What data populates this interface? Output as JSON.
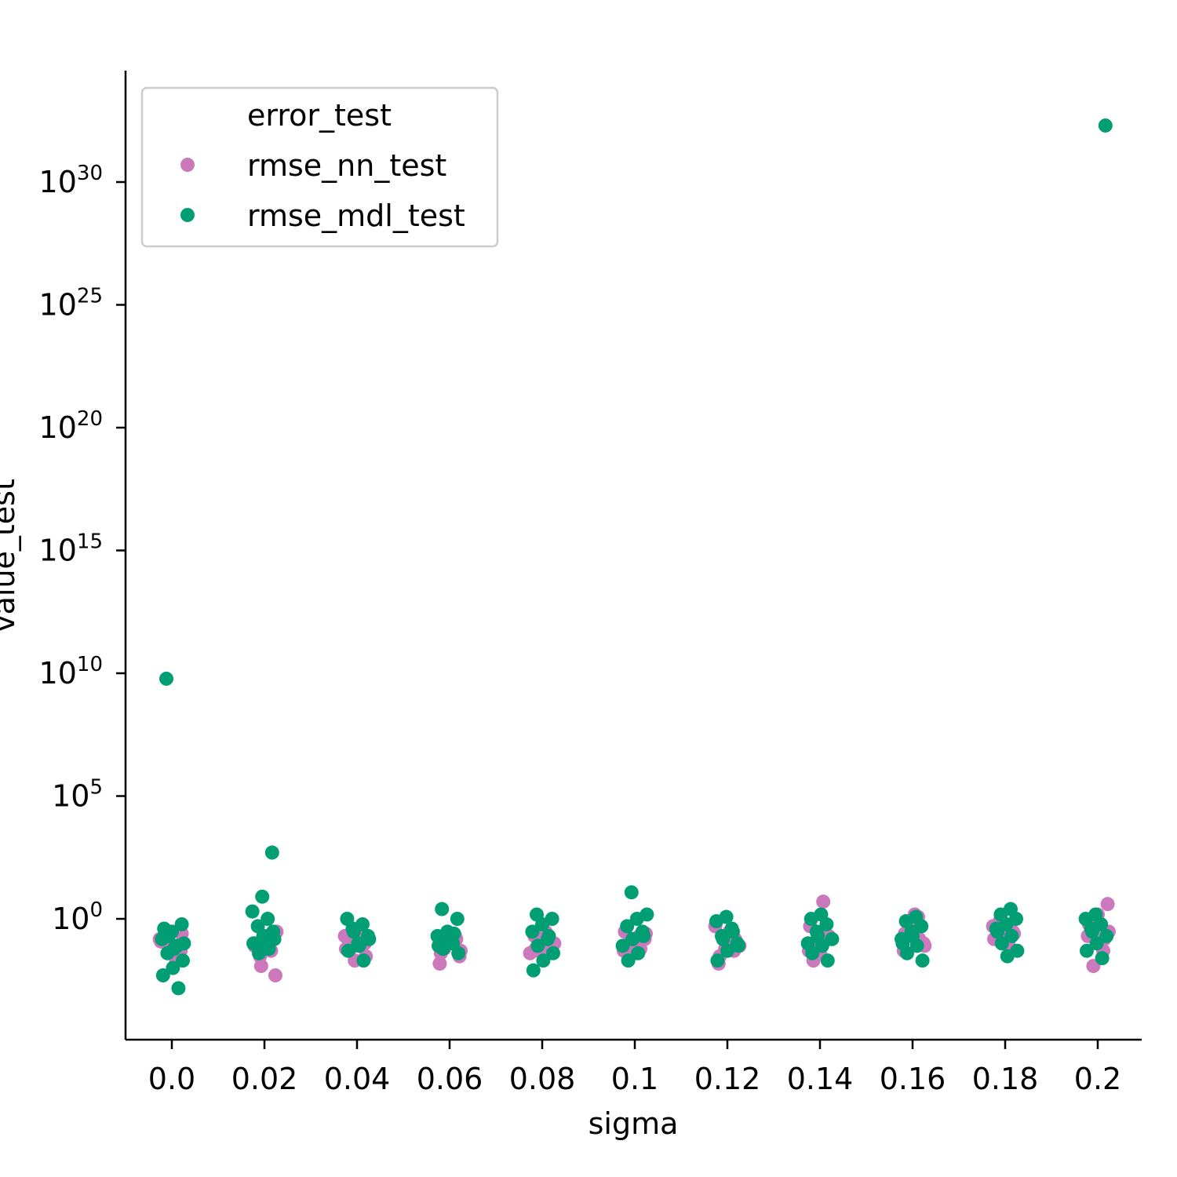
{
  "chart_data": {
    "type": "scatter",
    "subtype": "strip",
    "xlabel": "sigma",
    "ylabel": "value_test",
    "y_scale": "log",
    "categories": [
      "0.0",
      "0.02",
      "0.04",
      "0.06",
      "0.08",
      "0.1",
      "0.12",
      "0.14",
      "0.16",
      "0.18",
      "0.2"
    ],
    "y_ticks": [
      {
        "base": "10",
        "exp": "0",
        "value": 1
      },
      {
        "base": "10",
        "exp": "5",
        "value": 100000.0
      },
      {
        "base": "10",
        "exp": "10",
        "value": 10000000000.0
      },
      {
        "base": "10",
        "exp": "15",
        "value": 1000000000000000.0
      },
      {
        "base": "10",
        "exp": "20",
        "value": 1e+20
      },
      {
        "base": "10",
        "exp": "25",
        "value": 1e+25
      },
      {
        "base": "10",
        "exp": "30",
        "value": 1e+30
      }
    ],
    "ylim": [
      1e-05,
      1e+34
    ],
    "legend": {
      "title": "error_test",
      "position": "top-left"
    },
    "series": [
      {
        "name": "rmse_nn_test",
        "color": "#cc78bc",
        "points": [
          [
            0,
            0.15
          ],
          [
            0,
            0.08
          ],
          [
            0,
            0.2
          ],
          [
            0,
            0.05
          ],
          [
            0,
            0.3
          ],
          [
            0,
            0.12
          ],
          [
            0,
            0.02
          ],
          [
            0,
            0.1
          ],
          [
            0,
            0.25
          ],
          [
            0,
            0.06
          ],
          [
            1,
            0.08
          ],
          [
            1,
            0.15
          ],
          [
            1,
            0.03
          ],
          [
            1,
            0.005
          ],
          [
            1,
            0.2
          ],
          [
            1,
            0.1
          ],
          [
            1,
            0.05
          ],
          [
            1,
            0.012
          ],
          [
            1,
            0.3
          ],
          [
            1,
            0.06
          ],
          [
            2,
            0.05
          ],
          [
            2,
            0.1
          ],
          [
            2,
            0.02
          ],
          [
            2,
            0.2
          ],
          [
            2,
            0.15
          ],
          [
            2,
            0.08
          ],
          [
            2,
            0.03
          ],
          [
            2,
            0.12
          ],
          [
            2,
            0.06
          ],
          [
            2,
            0.25
          ],
          [
            3,
            0.06
          ],
          [
            3,
            0.03
          ],
          [
            3,
            0.1
          ],
          [
            3,
            0.015
          ],
          [
            3,
            0.2
          ],
          [
            3,
            0.08
          ],
          [
            3,
            0.05
          ],
          [
            3,
            0.12
          ],
          [
            3,
            0.04
          ],
          [
            3,
            0.15
          ],
          [
            4,
            0.05
          ],
          [
            4,
            0.1
          ],
          [
            4,
            0.03
          ],
          [
            4,
            0.2
          ],
          [
            4,
            0.08
          ],
          [
            4,
            0.15
          ],
          [
            4,
            0.04
          ],
          [
            4,
            0.3
          ],
          [
            4,
            0.06
          ],
          [
            4,
            0.12
          ],
          [
            5,
            0.1
          ],
          [
            5,
            0.05
          ],
          [
            5,
            0.2
          ],
          [
            5,
            0.08
          ],
          [
            5,
            0.15
          ],
          [
            5,
            0.04
          ],
          [
            5,
            0.3
          ],
          [
            5,
            0.06
          ],
          [
            5,
            0.12
          ],
          [
            5,
            0.25
          ],
          [
            6,
            0.1
          ],
          [
            6,
            0.015
          ],
          [
            6,
            0.05
          ],
          [
            6,
            0.2
          ],
          [
            6,
            0.08
          ],
          [
            6,
            0.3
          ],
          [
            6,
            0.03
          ],
          [
            6,
            0.15
          ],
          [
            6,
            0.06
          ],
          [
            6,
            0.5
          ],
          [
            7,
            5
          ],
          [
            7,
            0.02
          ],
          [
            7,
            0.2
          ],
          [
            7,
            0.1
          ],
          [
            7,
            0.05
          ],
          [
            7,
            0.3
          ],
          [
            7,
            0.08
          ],
          [
            7,
            0.15
          ],
          [
            7,
            0.04
          ],
          [
            7,
            0.5
          ],
          [
            8,
            1.2
          ],
          [
            8,
            0.2
          ],
          [
            8,
            0.1
          ],
          [
            8,
            0.3
          ],
          [
            8,
            0.05
          ],
          [
            8,
            0.15
          ],
          [
            8,
            0.4
          ],
          [
            8,
            0.08
          ],
          [
            8,
            1.5
          ],
          [
            8,
            0.25
          ],
          [
            9,
            0.3
          ],
          [
            9,
            0.2
          ],
          [
            9,
            0.5
          ],
          [
            9,
            0.1
          ],
          [
            9,
            0.4
          ],
          [
            9,
            0.25
          ],
          [
            9,
            0.6
          ],
          [
            9,
            0.15
          ],
          [
            9,
            0.35
          ],
          [
            9,
            0.8
          ],
          [
            10,
            4
          ],
          [
            10,
            1.5
          ],
          [
            10,
            0.2
          ],
          [
            10,
            0.05
          ],
          [
            10,
            0.012
          ],
          [
            10,
            0.3
          ],
          [
            10,
            0.1
          ],
          [
            10,
            0.6
          ],
          [
            10,
            0.15
          ],
          [
            10,
            0.4
          ]
        ]
      },
      {
        "name": "rmse_mdl_test",
        "color": "#029e73",
        "points": [
          [
            0,
            6000000000.0
          ],
          [
            0,
            0.6
          ],
          [
            0,
            0.3
          ],
          [
            0,
            0.15
          ],
          [
            0,
            0.08
          ],
          [
            0,
            0.04
          ],
          [
            0,
            0.02
          ],
          [
            0,
            0.01
          ],
          [
            0,
            0.005
          ],
          [
            0,
            0.0015
          ],
          [
            0,
            0.2
          ],
          [
            0,
            0.1
          ],
          [
            0,
            0.06
          ],
          [
            0,
            0.4
          ],
          [
            1,
            500
          ],
          [
            1,
            8
          ],
          [
            1,
            2
          ],
          [
            1,
            1
          ],
          [
            1,
            0.5
          ],
          [
            1,
            0.3
          ],
          [
            1,
            0.2
          ],
          [
            1,
            0.1
          ],
          [
            1,
            0.06
          ],
          [
            1,
            0.04
          ],
          [
            1,
            0.15
          ],
          [
            1,
            0.08
          ],
          [
            2,
            1
          ],
          [
            2,
            0.6
          ],
          [
            2,
            0.4
          ],
          [
            2,
            0.2
          ],
          [
            2,
            0.1
          ],
          [
            2,
            0.05
          ],
          [
            2,
            0.02
          ],
          [
            2,
            0.3
          ],
          [
            2,
            0.15
          ],
          [
            2,
            0.08
          ],
          [
            3,
            2.5
          ],
          [
            3,
            1
          ],
          [
            3,
            0.3
          ],
          [
            3,
            0.2
          ],
          [
            3,
            0.1
          ],
          [
            3,
            0.06
          ],
          [
            3,
            0.04
          ],
          [
            3,
            0.15
          ],
          [
            3,
            0.08
          ],
          [
            3,
            0.25
          ],
          [
            4,
            1.5
          ],
          [
            4,
            1
          ],
          [
            4,
            0.6
          ],
          [
            4,
            0.3
          ],
          [
            4,
            0.15
          ],
          [
            4,
            0.08
          ],
          [
            4,
            0.04
          ],
          [
            4,
            0.02
          ],
          [
            4,
            0.008
          ],
          [
            4,
            0.2
          ],
          [
            5,
            12
          ],
          [
            5,
            1.5
          ],
          [
            5,
            1
          ],
          [
            5,
            0.5
          ],
          [
            5,
            0.3
          ],
          [
            5,
            0.15
          ],
          [
            5,
            0.08
          ],
          [
            5,
            0.04
          ],
          [
            5,
            0.02
          ],
          [
            5,
            0.2
          ],
          [
            6,
            1.2
          ],
          [
            6,
            0.8
          ],
          [
            6,
            0.4
          ],
          [
            6,
            0.2
          ],
          [
            6,
            0.1
          ],
          [
            6,
            0.05
          ],
          [
            6,
            0.02
          ],
          [
            6,
            0.3
          ],
          [
            6,
            0.15
          ],
          [
            6,
            0.08
          ],
          [
            7,
            1.5
          ],
          [
            7,
            1
          ],
          [
            7,
            0.6
          ],
          [
            7,
            0.3
          ],
          [
            7,
            0.15
          ],
          [
            7,
            0.08
          ],
          [
            7,
            0.04
          ],
          [
            7,
            0.02
          ],
          [
            7,
            0.2
          ],
          [
            7,
            0.1
          ],
          [
            8,
            1.2
          ],
          [
            8,
            0.8
          ],
          [
            8,
            0.5
          ],
          [
            8,
            0.3
          ],
          [
            8,
            0.15
          ],
          [
            8,
            0.08
          ],
          [
            8,
            0.04
          ],
          [
            8,
            0.02
          ],
          [
            8,
            0.2
          ],
          [
            8,
            0.1
          ],
          [
            9,
            2.5
          ],
          [
            9,
            1.5
          ],
          [
            9,
            1
          ],
          [
            9,
            0.6
          ],
          [
            9,
            0.4
          ],
          [
            9,
            0.2
          ],
          [
            9,
            0.1
          ],
          [
            9,
            0.05
          ],
          [
            9,
            0.03
          ],
          [
            9,
            0.3
          ],
          [
            10,
            2e+32
          ],
          [
            10,
            1.5
          ],
          [
            10,
            1
          ],
          [
            10,
            0.6
          ],
          [
            10,
            0.4
          ],
          [
            10,
            0.2
          ],
          [
            10,
            0.1
          ],
          [
            10,
            0.05
          ],
          [
            10,
            0.025
          ],
          [
            10,
            0.3
          ]
        ]
      }
    ]
  }
}
